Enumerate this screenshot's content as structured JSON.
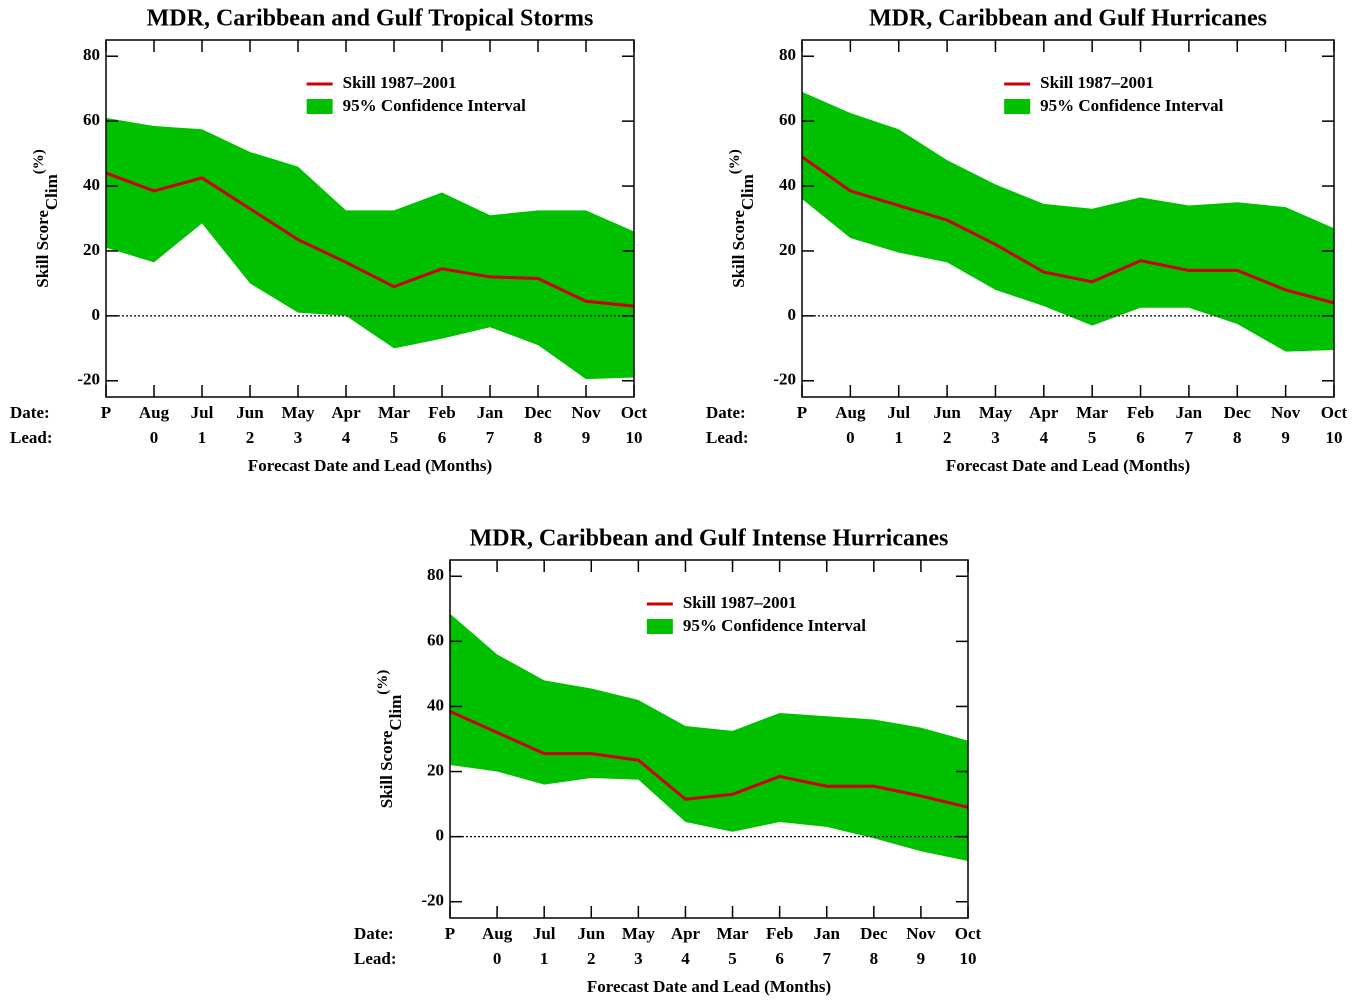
{
  "chart_data": [
    {
      "type": "line",
      "title": "MDR, Caribbean and Gulf Tropical Storms",
      "ylabel": "Skill Score",
      "ylabel_sub": "Clim",
      "ylabel_sup": "(%)",
      "xlabel": "Forecast Date and Lead (Months)",
      "date_label": "Date:",
      "lead_label": "Lead:",
      "categories": [
        "P",
        "Aug",
        "Jul",
        "Jun",
        "May",
        "Apr",
        "Mar",
        "Feb",
        "Jan",
        "Dec",
        "Nov",
        "Oct"
      ],
      "leads": [
        null,
        "0",
        "1",
        "2",
        "3",
        "4",
        "5",
        "6",
        "7",
        "8",
        "9",
        "10"
      ],
      "series": [
        {
          "name": "Skill 1987–2001",
          "color": "#cc0000",
          "values": [
            44,
            38.5,
            42.5,
            33,
            23.5,
            16.5,
            9,
            14.5,
            12,
            11.5,
            4.5,
            3
          ]
        }
      ],
      "band": {
        "name": "95% Confidence Interval",
        "color": "#00c000",
        "upper": [
          61,
          58.5,
          57.5,
          50.5,
          46,
          32.5,
          32.5,
          38,
          31,
          32.5,
          32.5,
          26
        ],
        "lower": [
          21,
          16.5,
          28.5,
          10,
          1,
          0,
          -10,
          -7,
          -3.5,
          -9,
          -19.5,
          -19
        ]
      },
      "hline": 0,
      "ylim": [
        -25,
        85
      ],
      "yticks": [
        -20,
        0,
        20,
        40,
        60,
        80
      ]
    },
    {
      "type": "line",
      "title": "MDR, Caribbean and Gulf Hurricanes",
      "ylabel": "Skill Score",
      "ylabel_sub": "Clim",
      "ylabel_sup": "(%)",
      "xlabel": "Forecast Date and Lead (Months)",
      "date_label": "Date:",
      "lead_label": "Lead:",
      "categories": [
        "P",
        "Aug",
        "Jul",
        "Jun",
        "May",
        "Apr",
        "Mar",
        "Feb",
        "Jan",
        "Dec",
        "Nov",
        "Oct"
      ],
      "leads": [
        null,
        "0",
        "1",
        "2",
        "3",
        "4",
        "5",
        "6",
        "7",
        "8",
        "9",
        "10"
      ],
      "series": [
        {
          "name": "Skill 1987–2001",
          "color": "#cc0000",
          "values": [
            49,
            38.5,
            34,
            29.5,
            22,
            13.5,
            10.5,
            17,
            14,
            14,
            8,
            4
          ]
        }
      ],
      "band": {
        "name": "95% Confidence Interval",
        "color": "#00c000",
        "upper": [
          69,
          62.5,
          57.5,
          48,
          40.5,
          34.5,
          33,
          36.5,
          34,
          35,
          33.5,
          27
        ],
        "lower": [
          36,
          24,
          19.5,
          16.5,
          8,
          3,
          -3,
          2.5,
          2.5,
          -2.5,
          -11,
          -10.5
        ]
      },
      "hline": 0,
      "ylim": [
        -25,
        85
      ],
      "yticks": [
        -20,
        0,
        20,
        40,
        60,
        80
      ]
    },
    {
      "type": "line",
      "title": "MDR, Caribbean and Gulf Intense Hurricanes",
      "ylabel": "Skill Score",
      "ylabel_sub": "Clim",
      "ylabel_sup": "(%)",
      "xlabel": "Forecast Date and Lead (Months)",
      "date_label": "Date:",
      "lead_label": "Lead:",
      "categories": [
        "P",
        "Aug",
        "Jul",
        "Jun",
        "May",
        "Apr",
        "Mar",
        "Feb",
        "Jan",
        "Dec",
        "Nov",
        "Oct"
      ],
      "leads": [
        null,
        "0",
        "1",
        "2",
        "3",
        "4",
        "5",
        "6",
        "7",
        "8",
        "9",
        "10"
      ],
      "series": [
        {
          "name": "Skill 1987–2001",
          "color": "#cc0000",
          "values": [
            38.5,
            32,
            25.5,
            25.5,
            23.5,
            11.5,
            13,
            18.5,
            15.5,
            15.5,
            12.5,
            9
          ]
        }
      ],
      "band": {
        "name": "95% Confidence Interval",
        "color": "#00c000",
        "upper": [
          68.5,
          56,
          48,
          45.5,
          42,
          34,
          32.5,
          38,
          37,
          36,
          33.5,
          29.5
        ],
        "lower": [
          22,
          20,
          16,
          18,
          17.5,
          4.5,
          1.5,
          4.5,
          3,
          -0.5,
          -4.5,
          -7.5
        ]
      },
      "hline": 0,
      "ylim": [
        -25,
        85
      ],
      "yticks": [
        -20,
        0,
        20,
        40,
        60,
        80
      ]
    }
  ]
}
